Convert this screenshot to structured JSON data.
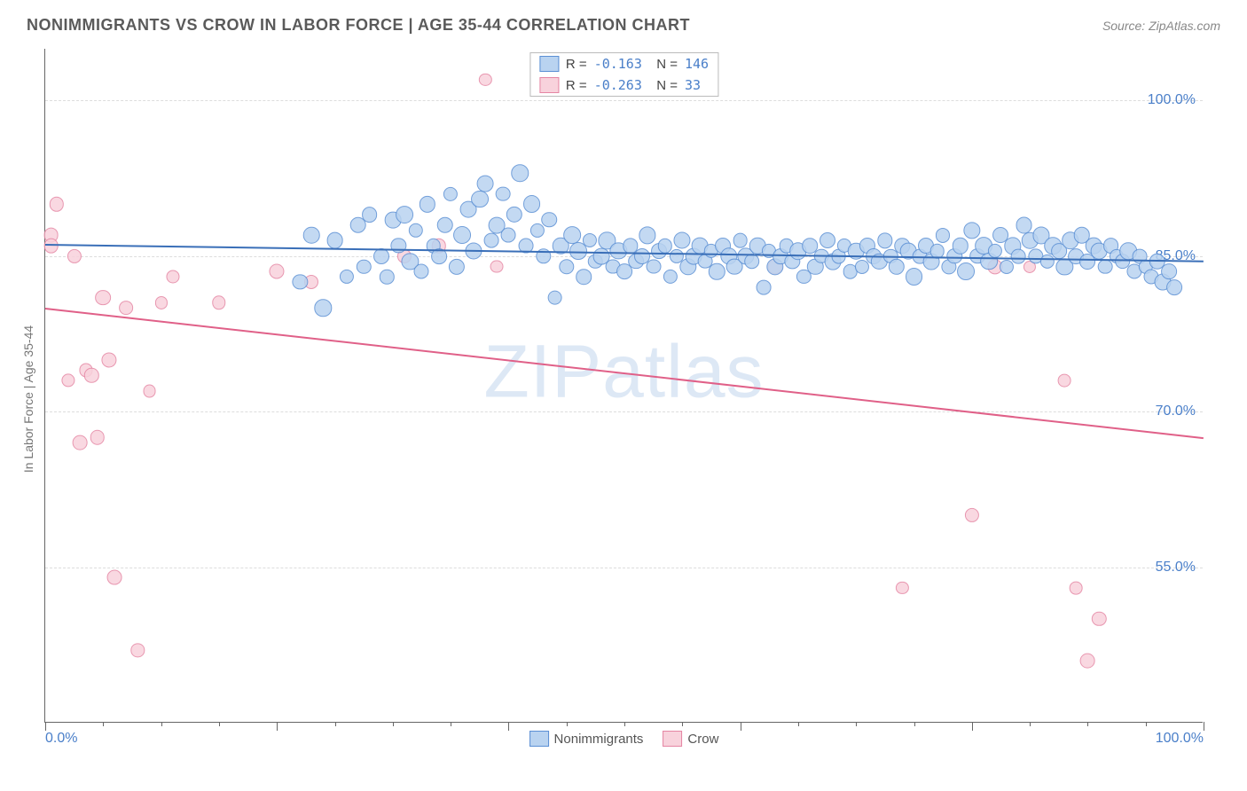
{
  "header": {
    "title": "NONIMMIGRANTS VS CROW IN LABOR FORCE | AGE 35-44 CORRELATION CHART",
    "source": "Source: ZipAtlas.com"
  },
  "watermark": "ZIPatlas",
  "chart": {
    "type": "scatter-with-trendlines",
    "ylabel": "In Labor Force | Age 35-44",
    "background_color": "#ffffff",
    "grid_color": "#dddddd",
    "axis_color": "#666666",
    "text_color": "#777777",
    "tick_label_color": "#4a7fc9",
    "title_fontsize": 18,
    "label_fontsize": 14,
    "tick_fontsize": 16,
    "xlim": [
      0,
      100
    ],
    "ylim": [
      40,
      105
    ],
    "xticks_minor": [
      0,
      5,
      10,
      15,
      20,
      25,
      30,
      35,
      40,
      45,
      50,
      55,
      60,
      65,
      70,
      75,
      80,
      85,
      90,
      95,
      100
    ],
    "xticks_major": [
      0,
      20,
      40,
      60,
      80,
      100
    ],
    "xtick_labels": {
      "0": "0.0%",
      "100": "100.0%"
    },
    "yticks": [
      55,
      70,
      85,
      100
    ],
    "ytick_labels": {
      "55": "55.0%",
      "70": "70.0%",
      "85": "85.0%",
      "100": "100.0%"
    },
    "point_base_radius": 7,
    "point_stroke_width": 1.2,
    "trend_width": 2,
    "series": [
      {
        "name": "Nonimmigrants",
        "color_fill": "#b9d3f0",
        "color_stroke": "#5a8fd4",
        "trend_color": "#3a6fb8",
        "r": "-0.163",
        "n": "146",
        "trend": {
          "x1": 0,
          "y1": 86.2,
          "x2": 100,
          "y2": 84.6
        },
        "points": [
          [
            22,
            82.5
          ],
          [
            23,
            87
          ],
          [
            24,
            80
          ],
          [
            25,
            86.5
          ],
          [
            26,
            83
          ],
          [
            27,
            88
          ],
          [
            27.5,
            84
          ],
          [
            28,
            89
          ],
          [
            29,
            85
          ],
          [
            29.5,
            83
          ],
          [
            30,
            88.5
          ],
          [
            30.5,
            86
          ],
          [
            31,
            89
          ],
          [
            31.5,
            84.5
          ],
          [
            32,
            87.5
          ],
          [
            32.5,
            83.5
          ],
          [
            33,
            90
          ],
          [
            33.5,
            86
          ],
          [
            34,
            85
          ],
          [
            34.5,
            88
          ],
          [
            35,
            91
          ],
          [
            35.5,
            84
          ],
          [
            36,
            87
          ],
          [
            36.5,
            89.5
          ],
          [
            37,
            85.5
          ],
          [
            37.5,
            90.5
          ],
          [
            38,
            92
          ],
          [
            38.5,
            86.5
          ],
          [
            39,
            88
          ],
          [
            39.5,
            91
          ],
          [
            40,
            87
          ],
          [
            40.5,
            89
          ],
          [
            41,
            93
          ],
          [
            41.5,
            86
          ],
          [
            42,
            90
          ],
          [
            42.5,
            87.5
          ],
          [
            43,
            85
          ],
          [
            43.5,
            88.5
          ],
          [
            44,
            81
          ],
          [
            44.5,
            86
          ],
          [
            45,
            84
          ],
          [
            45.5,
            87
          ],
          [
            46,
            85.5
          ],
          [
            46.5,
            83
          ],
          [
            47,
            86.5
          ],
          [
            47.5,
            84.5
          ],
          [
            48,
            85
          ],
          [
            48.5,
            86.5
          ],
          [
            49,
            84
          ],
          [
            49.5,
            85.5
          ],
          [
            50,
            83.5
          ],
          [
            50.5,
            86
          ],
          [
            51,
            84.5
          ],
          [
            51.5,
            85
          ],
          [
            52,
            87
          ],
          [
            52.5,
            84
          ],
          [
            53,
            85.5
          ],
          [
            53.5,
            86
          ],
          [
            54,
            83
          ],
          [
            54.5,
            85
          ],
          [
            55,
            86.5
          ],
          [
            55.5,
            84
          ],
          [
            56,
            85
          ],
          [
            56.5,
            86
          ],
          [
            57,
            84.5
          ],
          [
            57.5,
            85.5
          ],
          [
            58,
            83.5
          ],
          [
            58.5,
            86
          ],
          [
            59,
            85
          ],
          [
            59.5,
            84
          ],
          [
            60,
            86.5
          ],
          [
            60.5,
            85
          ],
          [
            61,
            84.5
          ],
          [
            61.5,
            86
          ],
          [
            62,
            82
          ],
          [
            62.5,
            85.5
          ],
          [
            63,
            84
          ],
          [
            63.5,
            85
          ],
          [
            64,
            86
          ],
          [
            64.5,
            84.5
          ],
          [
            65,
            85.5
          ],
          [
            65.5,
            83
          ],
          [
            66,
            86
          ],
          [
            66.5,
            84
          ],
          [
            67,
            85
          ],
          [
            67.5,
            86.5
          ],
          [
            68,
            84.5
          ],
          [
            68.5,
            85
          ],
          [
            69,
            86
          ],
          [
            69.5,
            83.5
          ],
          [
            70,
            85.5
          ],
          [
            70.5,
            84
          ],
          [
            71,
            86
          ],
          [
            71.5,
            85
          ],
          [
            72,
            84.5
          ],
          [
            72.5,
            86.5
          ],
          [
            73,
            85
          ],
          [
            73.5,
            84
          ],
          [
            74,
            86
          ],
          [
            74.5,
            85.5
          ],
          [
            75,
            83
          ],
          [
            75.5,
            85
          ],
          [
            76,
            86
          ],
          [
            76.5,
            84.5
          ],
          [
            77,
            85.5
          ],
          [
            77.5,
            87
          ],
          [
            78,
            84
          ],
          [
            78.5,
            85
          ],
          [
            79,
            86
          ],
          [
            79.5,
            83.5
          ],
          [
            80,
            87.5
          ],
          [
            80.5,
            85
          ],
          [
            81,
            86
          ],
          [
            81.5,
            84.5
          ],
          [
            82,
            85.5
          ],
          [
            82.5,
            87
          ],
          [
            83,
            84
          ],
          [
            83.5,
            86
          ],
          [
            84,
            85
          ],
          [
            84.5,
            88
          ],
          [
            85,
            86.5
          ],
          [
            85.5,
            85
          ],
          [
            86,
            87
          ],
          [
            86.5,
            84.5
          ],
          [
            87,
            86
          ],
          [
            87.5,
            85.5
          ],
          [
            88,
            84
          ],
          [
            88.5,
            86.5
          ],
          [
            89,
            85
          ],
          [
            89.5,
            87
          ],
          [
            90,
            84.5
          ],
          [
            90.5,
            86
          ],
          [
            91,
            85.5
          ],
          [
            91.5,
            84
          ],
          [
            92,
            86
          ],
          [
            92.5,
            85
          ],
          [
            93,
            84.5
          ],
          [
            93.5,
            85.5
          ],
          [
            94,
            83.5
          ],
          [
            94.5,
            85
          ],
          [
            95,
            84
          ],
          [
            95.5,
            83
          ],
          [
            96,
            84.5
          ],
          [
            96.5,
            82.5
          ],
          [
            97,
            83.5
          ],
          [
            97.5,
            82
          ]
        ]
      },
      {
        "name": "Crow",
        "color_fill": "#f8d2dc",
        "color_stroke": "#e585a3",
        "trend_color": "#e06088",
        "r": "-0.263",
        "n": "33",
        "trend": {
          "x1": 0,
          "y1": 80,
          "x2": 100,
          "y2": 67.5
        },
        "points": [
          [
            0.5,
            87
          ],
          [
            0.5,
            86
          ],
          [
            1,
            90
          ],
          [
            2,
            73
          ],
          [
            2.5,
            85
          ],
          [
            3,
            67
          ],
          [
            3.5,
            74
          ],
          [
            4,
            73.5
          ],
          [
            4.5,
            67.5
          ],
          [
            5,
            81
          ],
          [
            5.5,
            75
          ],
          [
            6,
            54
          ],
          [
            7,
            80
          ],
          [
            8,
            47
          ],
          [
            9,
            72
          ],
          [
            10,
            80.5
          ],
          [
            11,
            83
          ],
          [
            15,
            80.5
          ],
          [
            20,
            83.5
          ],
          [
            23,
            82.5
          ],
          [
            31,
            85
          ],
          [
            34,
            86
          ],
          [
            38,
            102
          ],
          [
            39,
            84
          ],
          [
            63,
            84
          ],
          [
            74,
            53
          ],
          [
            80,
            60
          ],
          [
            82,
            84
          ],
          [
            85,
            84
          ],
          [
            88,
            73
          ],
          [
            89,
            53
          ],
          [
            90,
            46
          ],
          [
            91,
            50
          ]
        ]
      }
    ]
  },
  "legend_bottom": [
    {
      "label": "Nonimmigrants",
      "fill": "#b9d3f0",
      "stroke": "#5a8fd4"
    },
    {
      "label": "Crow",
      "fill": "#f8d2dc",
      "stroke": "#e585a3"
    }
  ]
}
